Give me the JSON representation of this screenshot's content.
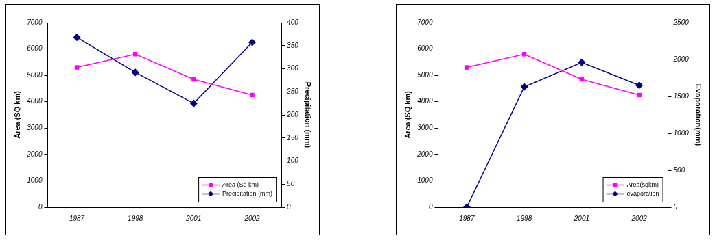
{
  "chart_data": [
    {
      "type": "line",
      "categories": [
        "1987",
        "1998",
        "2001",
        "2002"
      ],
      "y_label": "Area (SQ km)",
      "y2_label": "Precipitation (mm)",
      "ylim": [
        0,
        7000
      ],
      "yticks": [
        0,
        1000,
        2000,
        3000,
        4000,
        5000,
        6000,
        7000
      ],
      "y2lim": [
        0,
        400
      ],
      "y2ticks": [
        0,
        50,
        100,
        150,
        200,
        250,
        300,
        350,
        400
      ],
      "grid": false,
      "legend": "lower right",
      "series": [
        {
          "name": "Area (Sq km)",
          "color": "#ff00ff",
          "marker": "square",
          "values": [
            5300,
            5800,
            4850,
            4250
          ]
        },
        {
          "name": "Precipitation (mm)",
          "color": "#000080",
          "marker": "diamond",
          "axis": "y2",
          "values": [
            368,
            292,
            225,
            357
          ]
        }
      ]
    },
    {
      "type": "line",
      "categories": [
        "1987",
        "1998",
        "2001",
        "2002"
      ],
      "y_label": "Area (SQ km)",
      "y2_label": "Evaporation(mm)",
      "ylim": [
        0,
        7000
      ],
      "yticks": [
        0,
        1000,
        2000,
        3000,
        4000,
        5000,
        6000,
        7000
      ],
      "y2lim": [
        0,
        2500
      ],
      "y2ticks": [
        0,
        500,
        1000,
        1500,
        2000,
        2500
      ],
      "grid": false,
      "legend": "lower right",
      "series": [
        {
          "name": "Area(sqkm)",
          "color": "#ff00ff",
          "marker": "square",
          "values": [
            5300,
            5800,
            4850,
            4250
          ]
        },
        {
          "name": "evaporation",
          "color": "#000080",
          "marker": "diamond",
          "axis": "y2",
          "values": [
            0,
            1630,
            1960,
            1650
          ]
        }
      ]
    }
  ]
}
